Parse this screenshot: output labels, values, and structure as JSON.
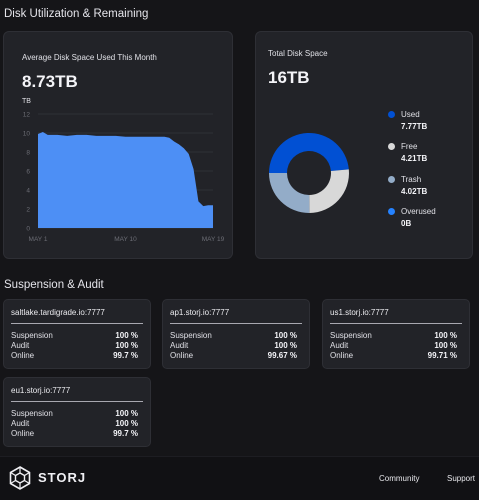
{
  "disk_section": {
    "title": "Disk Utilization & Remaining"
  },
  "avg_card": {
    "label": "Average Disk Space Used This Month",
    "value": "8.73TB",
    "unit": "TB",
    "colors": {
      "area": "#4d8ff5",
      "grid": "#2f3036",
      "axis_text": "#6c6d75"
    }
  },
  "chart_data": {
    "type": "area",
    "title": "Average Disk Space Used This Month",
    "ylabel": "TB",
    "ylim": [
      0,
      12
    ],
    "yticks": [
      0,
      2,
      4,
      6,
      8,
      10,
      12
    ],
    "xtick_labels": [
      {
        "label": "MAY 1",
        "day": 1
      },
      {
        "label": "MAY 10",
        "day": 10
      },
      {
        "label": "MAY 19",
        "day": 19
      }
    ],
    "x": [
      1,
      1.5,
      2,
      3,
      4,
      5,
      6,
      7,
      8,
      9,
      10,
      11,
      12,
      13,
      14,
      14.5,
      15,
      15.5,
      16,
      16.5,
      17,
      17.5,
      18,
      18.5,
      19
    ],
    "y": [
      9.9,
      10.1,
      9.8,
      9.8,
      9.7,
      9.8,
      9.8,
      9.7,
      9.7,
      9.7,
      9.6,
      9.6,
      9.6,
      9.6,
      9.6,
      9.5,
      9.1,
      8.8,
      8.4,
      7.8,
      6.2,
      2.8,
      2.3,
      2.4,
      2.4
    ],
    "grid": true,
    "legend": "none"
  },
  "total_card": {
    "label": "Total Disk Space",
    "value": "16TB",
    "donut": [
      {
        "name": "Used",
        "value": "7.77TB",
        "amount": 7.77,
        "color": "#0150d3"
      },
      {
        "name": "Free",
        "value": "4.21TB",
        "amount": 4.21,
        "color": "#d8d8d8"
      },
      {
        "name": "Trash",
        "value": "4.02TB",
        "amount": 4.02,
        "color": "#93acc8"
      },
      {
        "name": "Overused",
        "value": "0B",
        "amount": 0,
        "color": "#2582ff"
      }
    ]
  },
  "audit_section": {
    "title": "Suspension & Audit"
  },
  "satellites": [
    {
      "name": "saltlake.tardigrade.io:7777",
      "suspension": "100 %",
      "audit": "100 %",
      "online": "99.7 %"
    },
    {
      "name": "ap1.storj.io:7777",
      "suspension": "100 %",
      "audit": "100 %",
      "online": "99.67 %"
    },
    {
      "name": "us1.storj.io:7777",
      "suspension": "100 %",
      "audit": "100 %",
      "online": "99.71 %"
    },
    {
      "name": "eu1.storj.io:7777",
      "suspension": "100 %",
      "audit": "100 %",
      "online": "99.7 %"
    }
  ],
  "satellite_labels": {
    "suspension": "Suspension",
    "audit": "Audit",
    "online": "Online"
  },
  "footer": {
    "logo": "STORJ",
    "links": [
      "Community",
      "Support"
    ]
  }
}
